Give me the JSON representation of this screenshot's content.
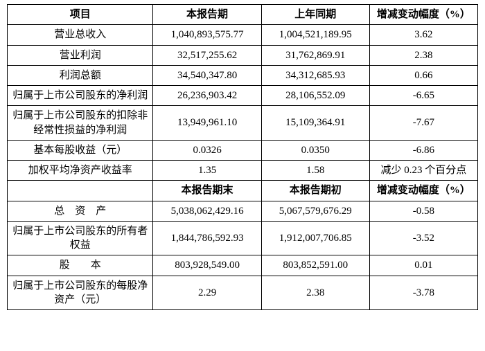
{
  "table": {
    "header1": {
      "item": "项目",
      "current": "本报告期",
      "prior": "上年同期",
      "change": "增减变动幅度（%）"
    },
    "header2": {
      "item": "",
      "current": "本报告期末",
      "prior": "本报告期初",
      "change": "增减变动幅度（%）"
    },
    "section1": [
      {
        "label": "营业总收入",
        "current": "1,040,893,575.77",
        "prior": "1,004,521,189.95",
        "change": "3.62"
      },
      {
        "label": "营业利润",
        "current": "32,517,255.62",
        "prior": "31,762,869.91",
        "change": "2.38"
      },
      {
        "label": "利润总额",
        "current": "34,540,347.80",
        "prior": "34,312,685.93",
        "change": "0.66"
      },
      {
        "label": "归属于上市公司股东的净利润",
        "current": "26,236,903.42",
        "prior": "28,106,552.09",
        "change": "-6.65"
      },
      {
        "label": "归属于上市公司股东的扣除非经常性损益的净利润",
        "current": "13,949,961.10",
        "prior": "15,109,364.91",
        "change": "-7.67"
      },
      {
        "label": "基本每股收益（元）",
        "current": "0.0326",
        "prior": "0.0350",
        "change": "-6.86"
      },
      {
        "label": "加权平均净资产收益率",
        "current": "1.35",
        "prior": "1.58",
        "change": "减少 0.23 个百分点"
      }
    ],
    "section2": [
      {
        "label": "总　资　产",
        "current": "5,038,062,429.16",
        "prior": "5,067,579,676.29",
        "change": "-0.58"
      },
      {
        "label": "归属于上市公司股东的所有者权益",
        "current": "1,844,786,592.93",
        "prior": "1,912,007,706.85",
        "change": "-3.52"
      },
      {
        "label": "股　　本",
        "current": "803,928,549.00",
        "prior": "803,852,591.00",
        "change": "0.01"
      },
      {
        "label": "归属于上市公司股东的每股净资产（元）",
        "current": "2.29",
        "prior": "2.38",
        "change": "-3.78"
      }
    ],
    "styling": {
      "font_family": "SimSun",
      "font_size_pt": 11,
      "header_font_weight": "bold",
      "border_color": "#000000",
      "background_color": "#ffffff",
      "text_color": "#000000",
      "text_align_labels": "center",
      "text_align_numbers": "center",
      "column_widths_pct": [
        31,
        23,
        23,
        23
      ]
    }
  }
}
